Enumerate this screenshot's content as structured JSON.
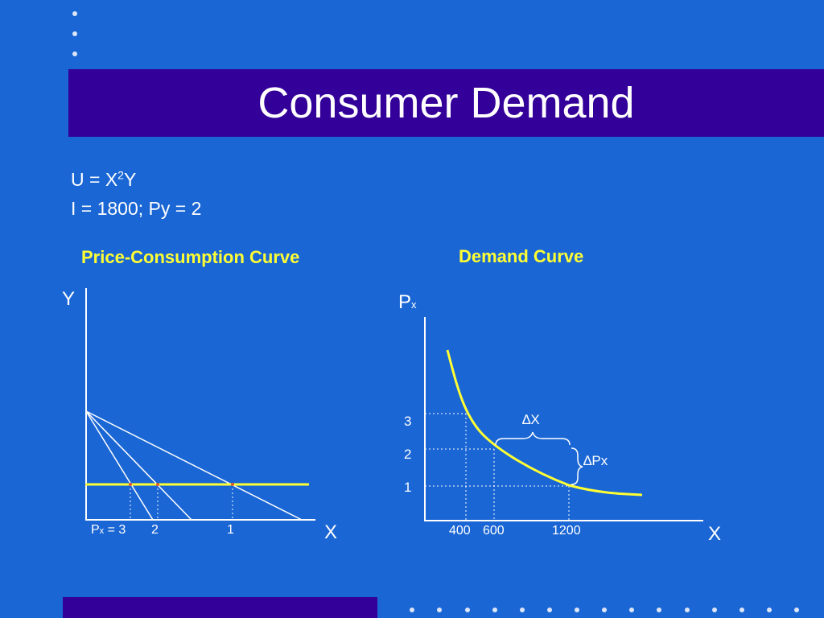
{
  "slide": {
    "title": "Consumer Demand",
    "utility_equation": {
      "lhs": "U = X",
      "exponent": "2",
      "rhs": "Y"
    },
    "constraint_equation": "I = 1800; Py = 2"
  },
  "left_diagram": {
    "title": "Price-Consumption Curve",
    "y_axis_label": "Y",
    "x_axis_label": "X",
    "px_prefix": "P",
    "px_subscript": "x",
    "px_first": " = 3",
    "px_labels": [
      "2",
      "1"
    ]
  },
  "right_diagram": {
    "title": "Demand Curve",
    "y_axis_label_main": "P",
    "y_axis_label_sub": "x",
    "x_axis_label": "X",
    "price_ticks": [
      "3",
      "2",
      "1"
    ],
    "quantity_ticks": [
      "400",
      "600",
      "1200"
    ],
    "delta_x_label": "∆X",
    "delta_px_label": "∆Px"
  },
  "colors": {
    "background": "#1a66d4",
    "band": "#330099",
    "highlight": "#ffff33",
    "line": "#ffffff"
  }
}
